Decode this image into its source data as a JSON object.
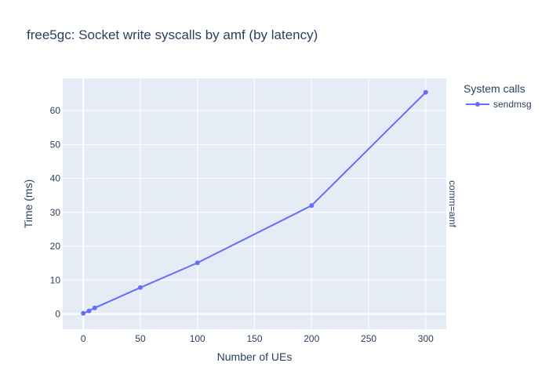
{
  "chart_data": {
    "type": "line",
    "title": "free5gc: Socket write syscalls by amf (by latency)",
    "xlabel": "Number of UEs",
    "ylabel": "Time (ms)",
    "xlim": [
      -18,
      318
    ],
    "ylim": [
      -4.5,
      69.5
    ],
    "xticks": [
      0,
      50,
      100,
      150,
      200,
      250,
      300
    ],
    "yticks": [
      0,
      10,
      20,
      30,
      40,
      50,
      60
    ],
    "grid": true,
    "legend": {
      "title": "System calls",
      "placement": "top-right outside"
    },
    "facet_label": "comm=amf",
    "series": [
      {
        "name": "sendmsg",
        "color": "#636efa",
        "x": [
          0,
          5,
          10,
          50,
          100,
          200,
          300
        ],
        "y": [
          0.2,
          0.9,
          1.8,
          7.8,
          15.1,
          32.0,
          65.4
        ]
      }
    ]
  }
}
